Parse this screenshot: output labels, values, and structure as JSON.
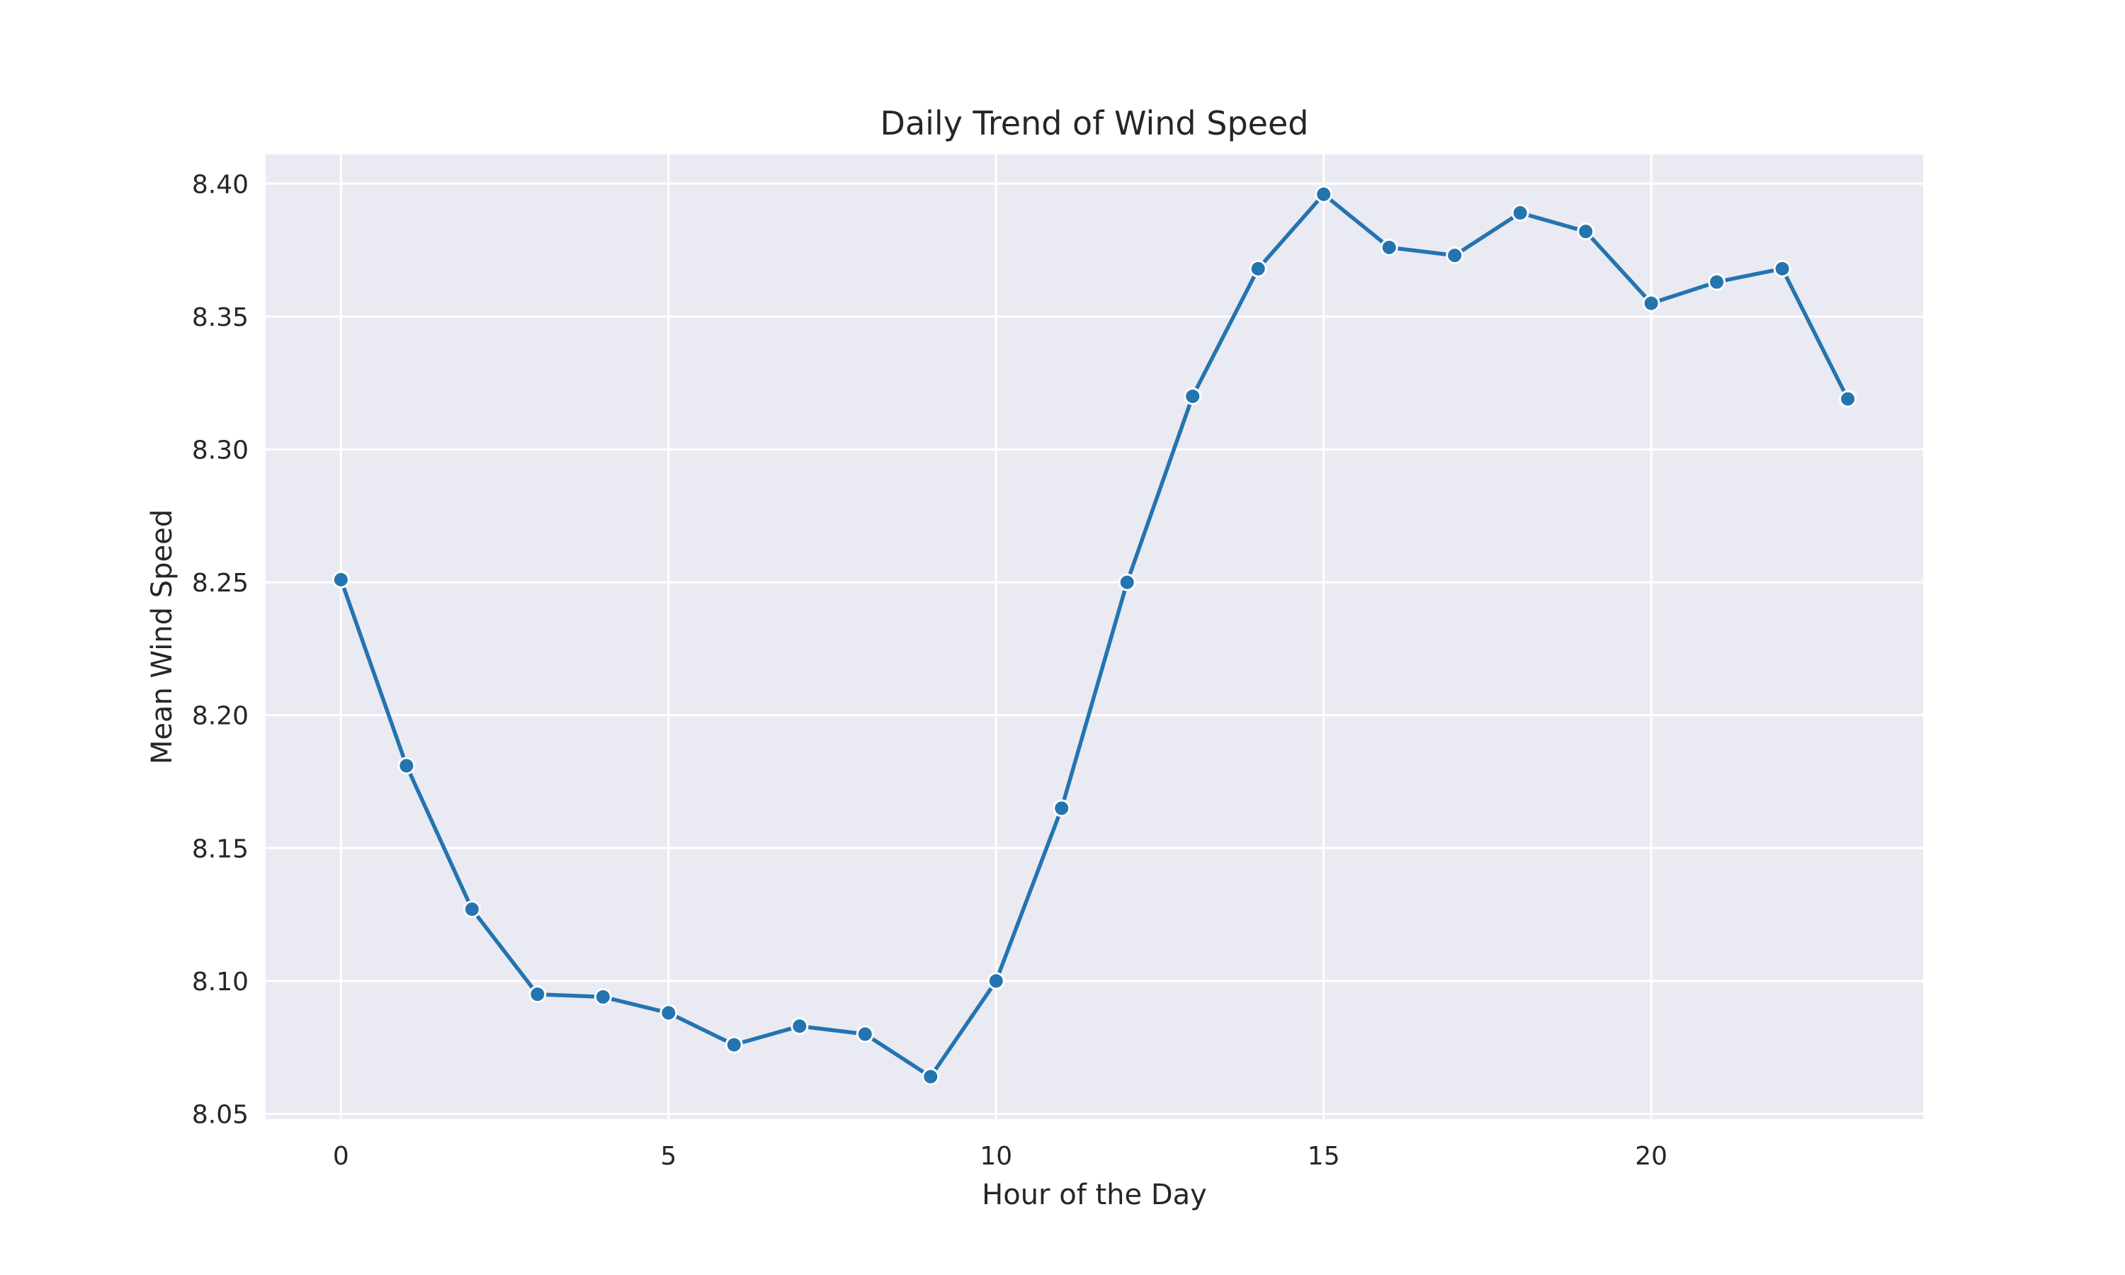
{
  "chart_data": {
    "type": "line",
    "title": "Daily Trend of Wind Speed",
    "xlabel": "Hour of the Day",
    "ylabel": "Mean Wind Speed",
    "x": [
      0,
      1,
      2,
      3,
      4,
      5,
      6,
      7,
      8,
      9,
      10,
      11,
      12,
      13,
      14,
      15,
      16,
      17,
      18,
      19,
      20,
      21,
      22,
      23
    ],
    "series": [
      {
        "values": [
          8.251,
          8.181,
          8.127,
          8.095,
          8.094,
          8.088,
          8.076,
          8.083,
          8.08,
          8.064,
          8.1,
          8.165,
          8.25,
          8.32,
          8.368,
          8.396,
          8.376,
          8.373,
          8.389,
          8.382,
          8.355,
          8.363,
          8.368,
          8.319
        ],
        "color": "#2474b0"
      }
    ],
    "xlim": [
      -1.15,
      24.15
    ],
    "ylim": [
      8.048,
      8.411
    ],
    "xticks": [
      0,
      5,
      10,
      15,
      20
    ],
    "xtick_labels": [
      "0",
      "5",
      "10",
      "15",
      "20"
    ],
    "yticks": [
      8.05,
      8.1,
      8.15,
      8.2,
      8.25,
      8.3,
      8.35,
      8.4
    ],
    "ytick_labels": [
      "8.05",
      "8.10",
      "8.15",
      "8.20",
      "8.25",
      "8.30",
      "8.35",
      "8.40"
    ],
    "grid": true,
    "background_color": "#eaeaf2",
    "grid_color": "#ffffff",
    "marker": "circle"
  }
}
